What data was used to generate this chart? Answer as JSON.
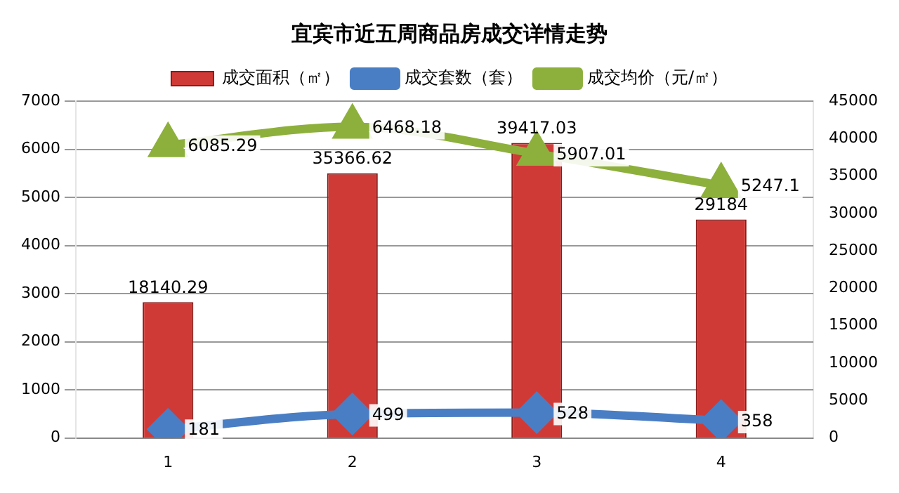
{
  "chart_data": {
    "type": "bar",
    "title": "宜宾市近五周商品房成交详情走势",
    "categories": [
      "1",
      "2",
      "3",
      "4"
    ],
    "series": [
      {
        "name": "成交面积（㎡）",
        "axis": "y2",
        "color": "#d03a36",
        "values": [
          18140.29,
          35366.62,
          39417.03,
          29184
        ]
      },
      {
        "name": "成交套数（套）",
        "type": "line",
        "marker": "diamond",
        "color": "#4a7ec4",
        "values": [
          181,
          499,
          528,
          358
        ]
      },
      {
        "name": "成交均价（元/㎡）",
        "type": "line",
        "marker": "triangle",
        "color": "#8db03c",
        "values": [
          6085.29,
          6468.18,
          5907.01,
          5247.1
        ]
      }
    ],
    "ylim": [
      0,
      7000
    ],
    "yticks": [
      0,
      1000,
      2000,
      3000,
      4000,
      5000,
      6000,
      7000
    ],
    "y2lim": [
      0,
      45000
    ],
    "y2ticks": [
      0,
      5000,
      10000,
      15000,
      20000,
      25000,
      30000,
      35000,
      40000,
      45000
    ],
    "grid": "y",
    "legend": "top",
    "data_labels": true
  }
}
